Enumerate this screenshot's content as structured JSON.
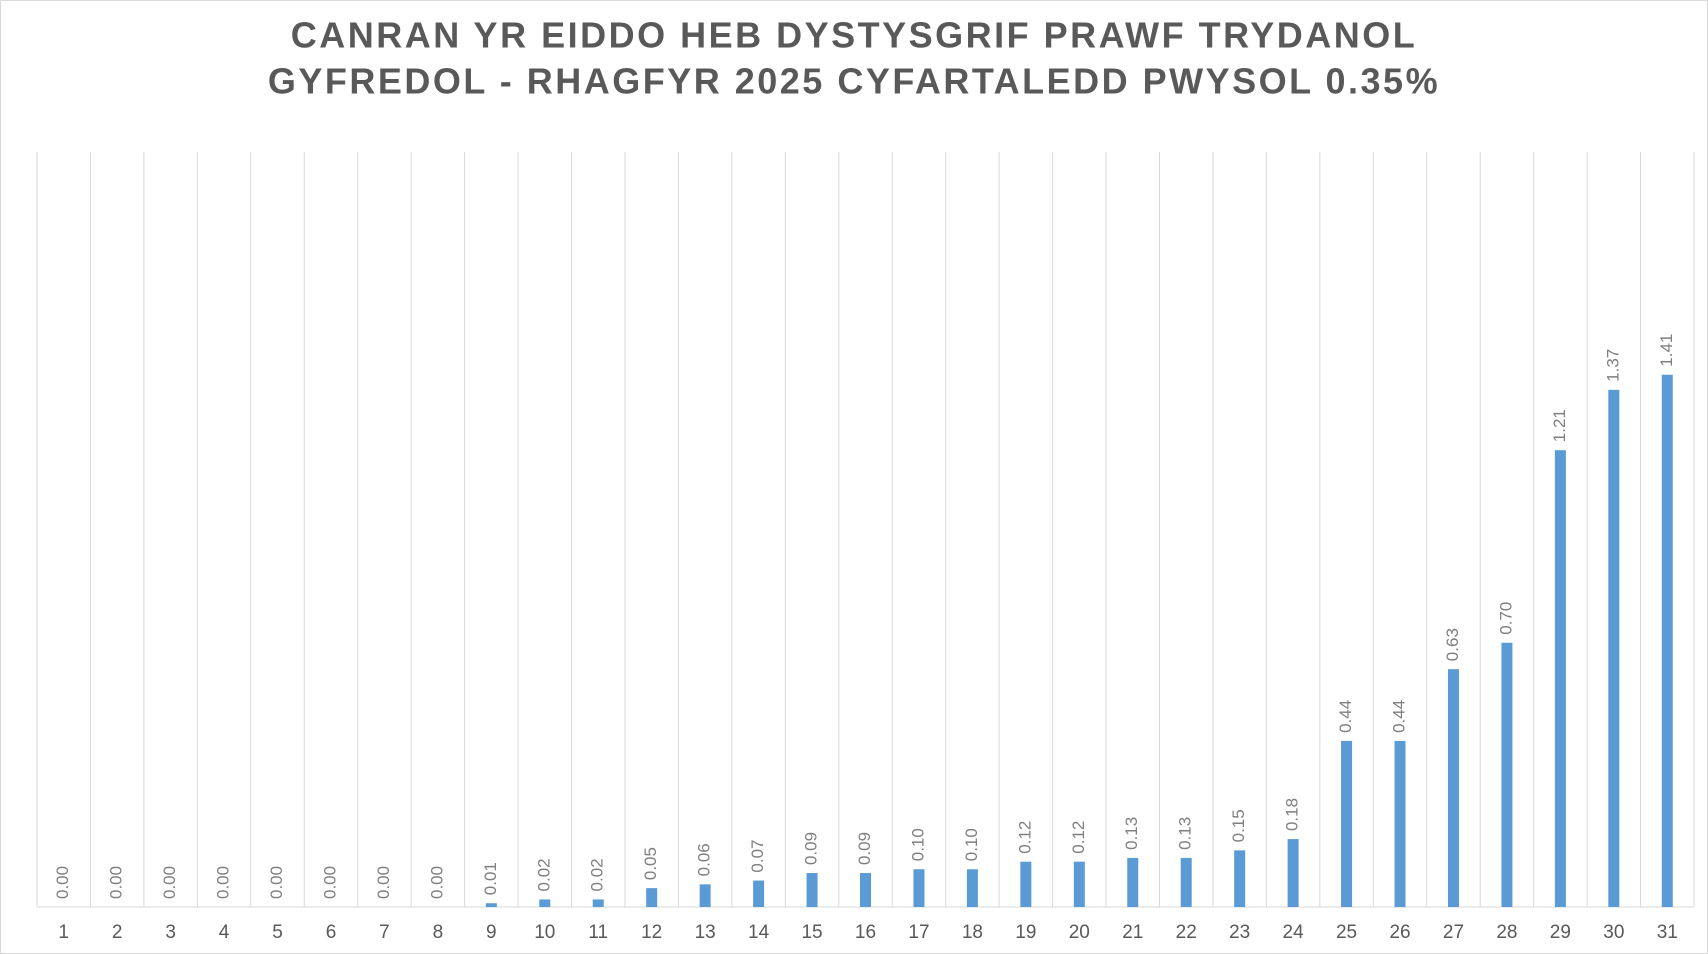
{
  "chart_data": {
    "type": "bar",
    "title": [
      "CANRAN YR EIDDO HEB DYSTYSGRIF PRAWF TRYDANOL",
      "GYFREDOL - RHAGFYR 2025 CYFARTALEDD PWYSOL 0.35%"
    ],
    "categories": [
      "1",
      "2",
      "3",
      "4",
      "5",
      "6",
      "7",
      "8",
      "9",
      "10",
      "11",
      "12",
      "13",
      "14",
      "15",
      "16",
      "17",
      "18",
      "19",
      "20",
      "21",
      "22",
      "23",
      "24",
      "25",
      "26",
      "27",
      "28",
      "29",
      "30",
      "31"
    ],
    "values": [
      0,
      0,
      0,
      0,
      0,
      0,
      0,
      0,
      0.01,
      0.02,
      0.02,
      0.05,
      0.06,
      0.07,
      0.09,
      0.09,
      0.1,
      0.1,
      0.12,
      0.12,
      0.13,
      0.13,
      0.15,
      0.18,
      0.44,
      0.44,
      0.63,
      0.7,
      1.21,
      1.37,
      1.41
    ],
    "value_labels": [
      "0.00",
      "0.00",
      "0.00",
      "0.00",
      "0.00",
      "0.00",
      "0.00",
      "0.00",
      "0.01",
      "0.02",
      "0.02",
      "0.05",
      "0.06",
      "0.07",
      "0.09",
      "0.09",
      "0.10",
      "0.10",
      "0.12",
      "0.12",
      "0.13",
      "0.13",
      "0.15",
      "0.18",
      "0.44",
      "0.44",
      "0.63",
      "0.70",
      "1.21",
      "1.37",
      "1.41"
    ],
    "color": "#5b9bd5",
    "ylim": [
      0,
      2
    ],
    "grid": true
  }
}
